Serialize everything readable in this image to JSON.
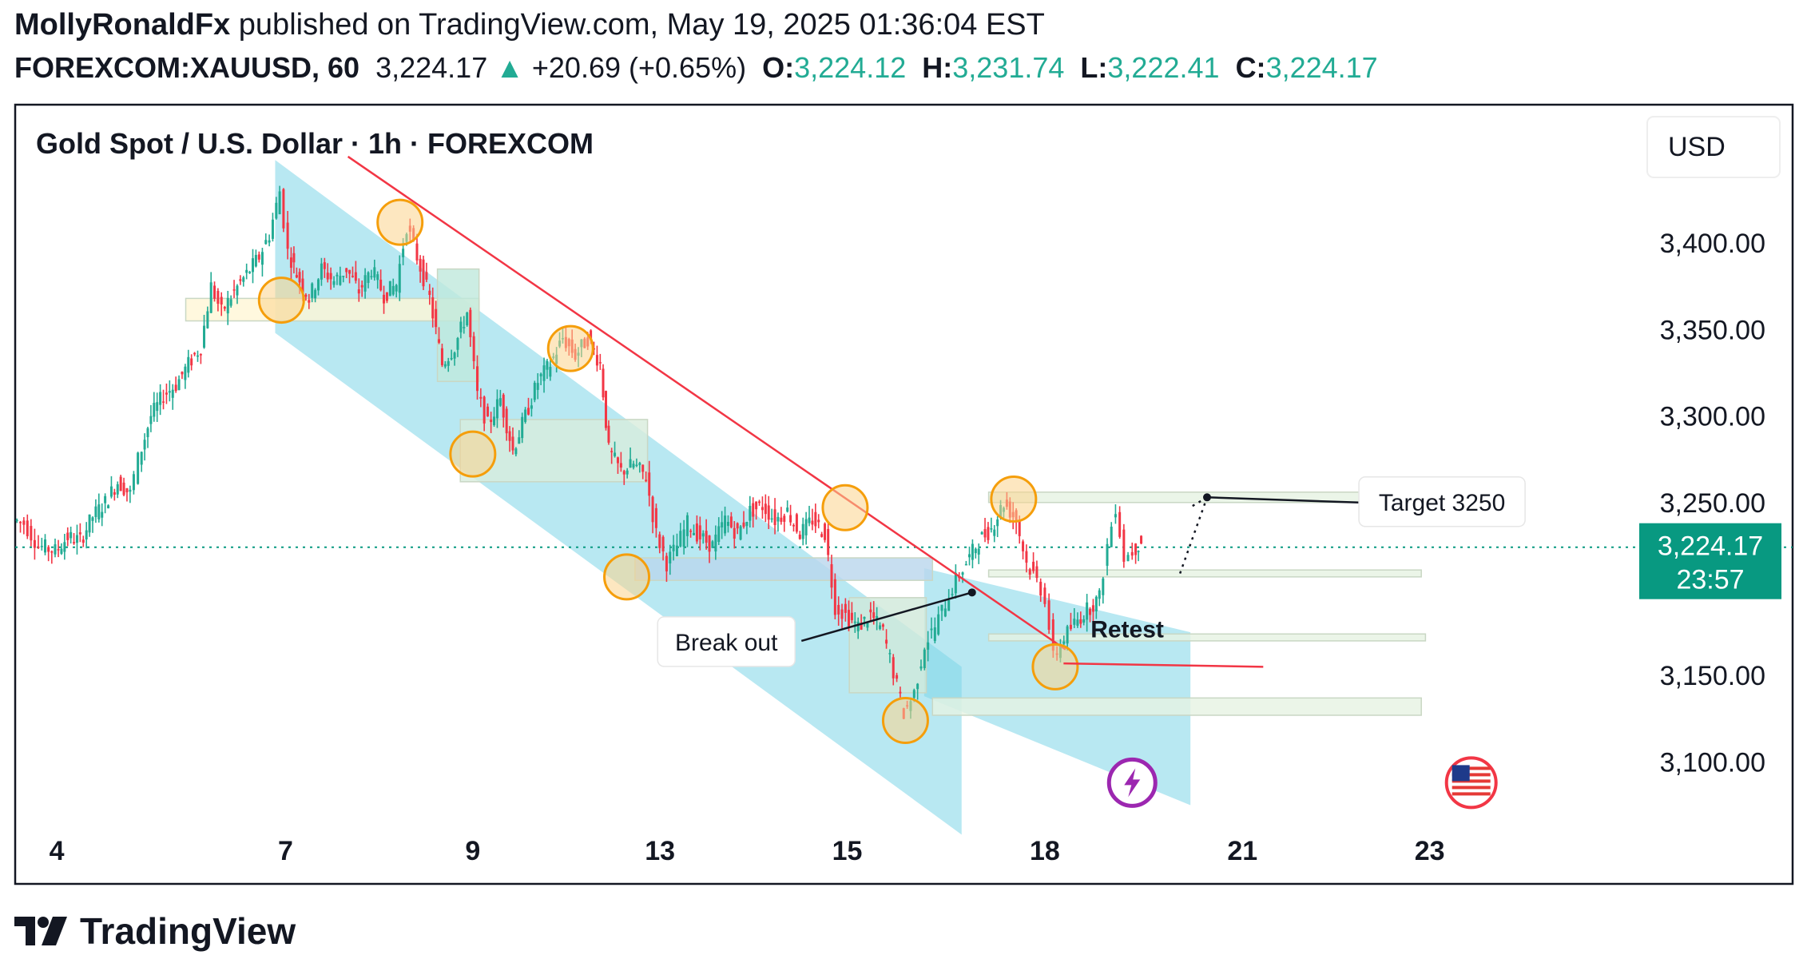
{
  "header": {
    "line1_author": "MollyRonaldFx",
    "line1_rest": " published on TradingView.com, May 19, 2025 01:36:04 EST",
    "symbol": "FOREXCOM:XAUUSD, 60",
    "last": "3,224.17",
    "up_arrow": "▲",
    "change": "+20.69 (+0.65%)",
    "o_label": "O:",
    "o_value": "3,224.12",
    "h_label": "H:",
    "h_value": "3,231.74",
    "l_label": "L:",
    "l_value": "3,222.41",
    "c_label": "C:",
    "c_value": "3,224.17"
  },
  "footer": {
    "brand": "TradingView",
    "logo_icon": "tradingview-logo-icon"
  },
  "colors": {
    "up": "#22ab94",
    "down": "#f23645",
    "channel": "#7ed6e8",
    "circle_fill": "#fbd38d",
    "circle_stroke": "#f59e0b",
    "zone": "#e6f2e2",
    "zone_stroke": "#c9d7c4",
    "accent": "#089981",
    "trendline": "#f23645"
  },
  "chart_data": {
    "type": "candlestick",
    "title": "Gold Spot / U.S. Dollar · 1h · FOREXCOM",
    "currency": "USD",
    "y_axis_labels": [
      "3,400.00",
      "3,350.00",
      "3,300.00",
      "3,250.00",
      "3,150.00",
      "3,100.00"
    ],
    "y_axis_values": [
      3400,
      3350,
      3300,
      3250,
      3150,
      3100
    ],
    "ylim": [
      3060,
      3480
    ],
    "x_axis_labels": [
      "4",
      "7",
      "9",
      "13",
      "15",
      "18",
      "21",
      "23"
    ],
    "x_axis_positions": [
      0,
      11,
      20,
      29,
      38,
      47.5,
      57,
      66
    ],
    "xlim": [
      -2,
      76
    ],
    "current_price": {
      "value": 3224.17,
      "label": "3,224.17",
      "countdown": "23:57"
    },
    "price_path": [
      [
        -2,
        3240
      ],
      [
        -1.5,
        3238
      ],
      [
        -0.8,
        3225
      ],
      [
        0,
        3222
      ],
      [
        0.6,
        3230
      ],
      [
        1.2,
        3228
      ],
      [
        1.8,
        3242
      ],
      [
        2.4,
        3250
      ],
      [
        3,
        3262
      ],
      [
        3.6,
        3255
      ],
      [
        4,
        3275
      ],
      [
        4.6,
        3300
      ],
      [
        5.2,
        3312
      ],
      [
        5.8,
        3318
      ],
      [
        6.4,
        3330
      ],
      [
        7,
        3340
      ],
      [
        7.5,
        3375
      ],
      [
        8,
        3360
      ],
      [
        8.6,
        3372
      ],
      [
        9.2,
        3382
      ],
      [
        9.8,
        3392
      ],
      [
        10.3,
        3405
      ],
      [
        10.8,
        3430
      ],
      [
        11.2,
        3395
      ],
      [
        11.6,
        3382
      ],
      [
        12.2,
        3368
      ],
      [
        12.8,
        3385
      ],
      [
        13.4,
        3378
      ],
      [
        14,
        3385
      ],
      [
        14.6,
        3372
      ],
      [
        15.2,
        3385
      ],
      [
        15.8,
        3370
      ],
      [
        16.4,
        3376
      ],
      [
        16.9,
        3410
      ],
      [
        17.4,
        3392
      ],
      [
        18,
        3368
      ],
      [
        18.6,
        3330
      ],
      [
        19.2,
        3340
      ],
      [
        19.8,
        3360
      ],
      [
        20.3,
        3312
      ],
      [
        20.8,
        3295
      ],
      [
        21.4,
        3310
      ],
      [
        22,
        3280
      ],
      [
        22.6,
        3300
      ],
      [
        23.2,
        3320
      ],
      [
        23.8,
        3330
      ],
      [
        24.4,
        3345
      ],
      [
        25,
        3335
      ],
      [
        25.6,
        3345
      ],
      [
        26.2,
        3330
      ],
      [
        26.6,
        3280
      ],
      [
        27.2,
        3268
      ],
      [
        27.8,
        3272
      ],
      [
        28.4,
        3265
      ],
      [
        28.9,
        3232
      ],
      [
        29.4,
        3215
      ],
      [
        29.9,
        3225
      ],
      [
        30.4,
        3238
      ],
      [
        31,
        3230
      ],
      [
        31.6,
        3225
      ],
      [
        32.2,
        3240
      ],
      [
        32.8,
        3232
      ],
      [
        33.4,
        3245
      ],
      [
        34,
        3248
      ],
      [
        34.6,
        3240
      ],
      [
        35.2,
        3245
      ],
      [
        35.8,
        3232
      ],
      [
        36.4,
        3240
      ],
      [
        37,
        3232
      ],
      [
        37.5,
        3190
      ],
      [
        38,
        3185
      ],
      [
        38.6,
        3178
      ],
      [
        39.2,
        3185
      ],
      [
        39.8,
        3175
      ],
      [
        40.3,
        3152
      ],
      [
        40.8,
        3128
      ],
      [
        41.3,
        3140
      ],
      [
        41.8,
        3168
      ],
      [
        42.3,
        3178
      ],
      [
        42.8,
        3192
      ],
      [
        43.3,
        3205
      ],
      [
        43.8,
        3215
      ],
      [
        44.4,
        3228
      ],
      [
        45,
        3235
      ],
      [
        45.6,
        3250
      ],
      [
        46.2,
        3240
      ],
      [
        46.7,
        3215
      ],
      [
        47.2,
        3205
      ],
      [
        47.6,
        3195
      ],
      [
        48,
        3160
      ],
      [
        48.5,
        3172
      ],
      [
        49,
        3180
      ],
      [
        49.6,
        3188
      ],
      [
        50.2,
        3195
      ],
      [
        50.6,
        3225
      ],
      [
        51,
        3248
      ],
      [
        51.4,
        3218
      ],
      [
        51.8,
        3222
      ],
      [
        52.2,
        3228
      ]
    ],
    "channel_1": {
      "points": [
        [
          10.5,
          3448
        ],
        [
          43.5,
          3155
        ],
        [
          43.5,
          3058
        ],
        [
          10.5,
          3348
        ]
      ]
    },
    "channel_2": {
      "points": [
        [
          41.7,
          3212
        ],
        [
          54.5,
          3175
        ],
        [
          54.5,
          3075
        ],
        [
          41.7,
          3138
        ]
      ]
    },
    "trendline": [
      [
        14,
        3450
      ],
      [
        48.5,
        3165
      ]
    ],
    "circles": [
      [
        16.5,
        3412
      ],
      [
        10.8,
        3367
      ],
      [
        24.7,
        3339
      ],
      [
        20,
        3278
      ],
      [
        37.9,
        3247
      ],
      [
        27.4,
        3207
      ],
      [
        46,
        3252
      ],
      [
        40.8,
        3124
      ],
      [
        48,
        3155
      ]
    ],
    "zones": [
      {
        "x": [
          6.2,
          20.3
        ],
        "y": [
          3355,
          3368
        ],
        "fill": "#fff6d6"
      },
      {
        "x": [
          18.3,
          20.3
        ],
        "y": [
          3320,
          3385
        ],
        "fill": "#bfe8dc"
      },
      {
        "x": [
          19.4,
          28.4
        ],
        "y": [
          3262,
          3298
        ],
        "fill": "#d8ecdc"
      },
      {
        "x": [
          27.8,
          42.1
        ],
        "y": [
          3205,
          3218
        ],
        "fill": "#b9d6ec"
      },
      {
        "x": [
          38.1,
          41.8
        ],
        "y": [
          3140,
          3195
        ],
        "fill": "#cfe9da"
      },
      {
        "x": [
          44.8,
          65.6
        ],
        "y": [
          3250,
          3256
        ],
        "fill": "#e6f2e2"
      },
      {
        "x": [
          44.8,
          65.6
        ],
        "y": [
          3207,
          3211
        ],
        "fill": "#e6f2e2"
      },
      {
        "x": [
          44.8,
          65.8
        ],
        "y": [
          3170,
          3174
        ],
        "fill": "#e6f2e2"
      },
      {
        "x": [
          42.1,
          65.6
        ],
        "y": [
          3127,
          3137
        ],
        "fill": "#e6f2e2"
      }
    ],
    "retest_line": [
      [
        48.4,
        3157
      ],
      [
        58,
        3155
      ]
    ],
    "dotted_projection": [
      [
        54,
        3209
      ],
      [
        55.3,
        3253
      ]
    ],
    "target_line": [
      [
        55.3,
        3253
      ],
      [
        62.6,
        3250
      ]
    ],
    "breakout_line": [
      [
        35.8,
        3170
      ],
      [
        44,
        3198
      ]
    ],
    "annotations": {
      "target": {
        "text": "Target 3250"
      },
      "breakout": {
        "text": "Break out"
      },
      "retest": {
        "text": "Retest"
      }
    },
    "events": [
      {
        "x": 51.7,
        "y": 3088,
        "icon": "lightning-event-icon"
      },
      {
        "x": 68,
        "y": 3088,
        "icon": "us-flag-event-icon"
      }
    ]
  }
}
